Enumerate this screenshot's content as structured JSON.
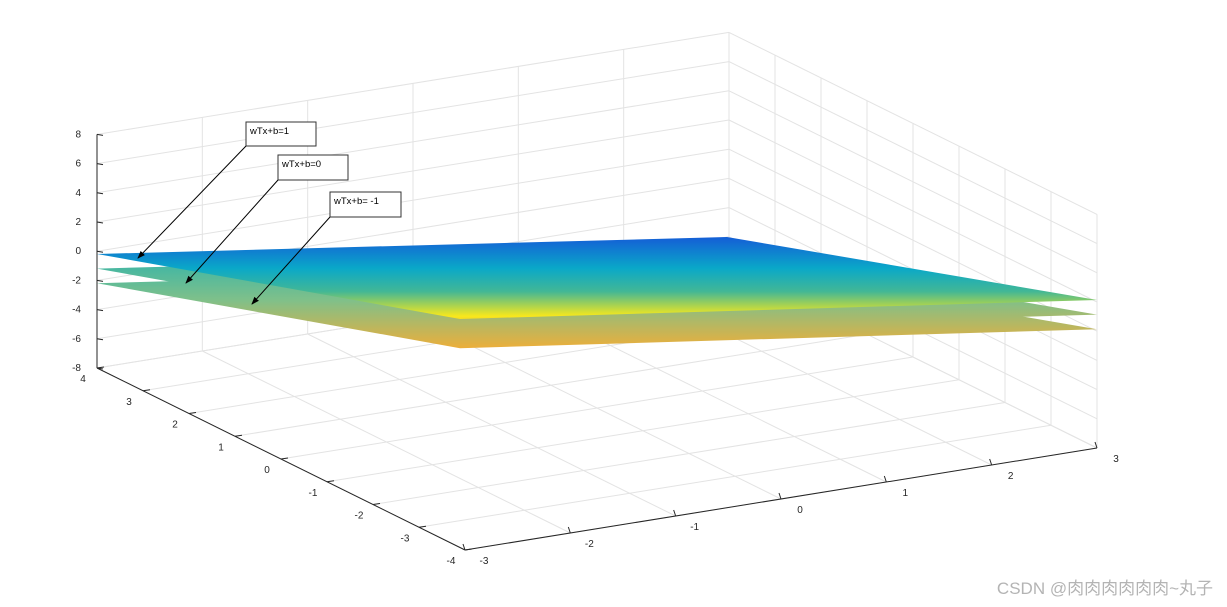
{
  "chart_data": {
    "type": "surface",
    "view": "3d-perspective",
    "colormap": "parula",
    "grid": true,
    "x_ticks": [
      "-3",
      "-2",
      "-1",
      "0",
      "1",
      "2",
      "3"
    ],
    "y_ticks": [
      "-4",
      "-3",
      "-2",
      "-1",
      "0",
      "1",
      "2",
      "3",
      "4"
    ],
    "z_ticks": [
      "-8",
      "-6",
      "-4",
      "-2",
      "0",
      "2",
      "4",
      "6",
      "8"
    ],
    "xlim": [
      -3,
      3
    ],
    "ylim": [
      -4,
      4
    ],
    "zlim": [
      -8,
      8
    ],
    "planes": [
      {
        "label": "wTx+b=1",
        "offset": 0
      },
      {
        "label": "wTx+b=0",
        "offset": -1
      },
      {
        "label": "wTx+b= -1",
        "offset": -2
      }
    ]
  },
  "watermark": "CSDN @肉肉肉肉肉肉~丸子",
  "colors": {
    "deep": "#1460d6",
    "mid": "#0aa8c8",
    "teal": "#42b796",
    "yellow": "#f8e81c",
    "orange": "#f0ae38",
    "grid": "#e3e3e3",
    "axis": "#262626"
  }
}
